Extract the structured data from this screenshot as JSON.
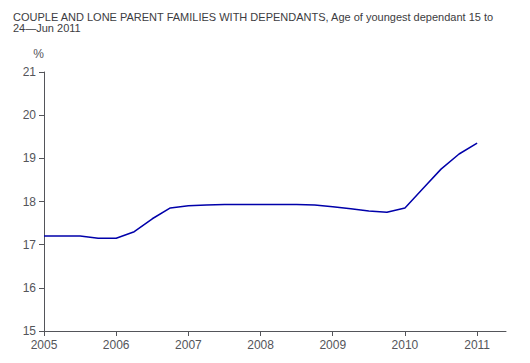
{
  "chart_data": {
    "type": "line",
    "title": "COUPLE AND LONE PARENT FAMILIES WITH DEPENDANTS, Age of youngest dependant 15 to 24—Jun 2011",
    "ylabel": "%",
    "x": [
      2005.0,
      2005.25,
      2005.5,
      2005.75,
      2006.0,
      2006.25,
      2006.5,
      2006.75,
      2007.0,
      2007.25,
      2007.5,
      2007.75,
      2008.0,
      2008.25,
      2008.5,
      2008.75,
      2009.0,
      2009.25,
      2009.5,
      2009.75,
      2010.0,
      2010.25,
      2010.5,
      2010.75,
      2011.0
    ],
    "values": [
      17.2,
      17.2,
      17.2,
      17.15,
      17.15,
      17.3,
      17.6,
      17.85,
      17.9,
      17.92,
      17.93,
      17.93,
      17.93,
      17.93,
      17.93,
      17.92,
      17.88,
      17.83,
      17.78,
      17.75,
      17.85,
      18.3,
      18.75,
      19.1,
      19.35
    ],
    "color": "#0000AA",
    "line_style": "solid",
    "xlim": [
      2005,
      2011.4
    ],
    "ylim": [
      15,
      21
    ],
    "xticks": [
      2005,
      2006,
      2007,
      2008,
      2009,
      2010,
      2011
    ],
    "yticks": [
      15,
      16,
      17,
      18,
      19,
      20,
      21
    ],
    "grid": false
  }
}
